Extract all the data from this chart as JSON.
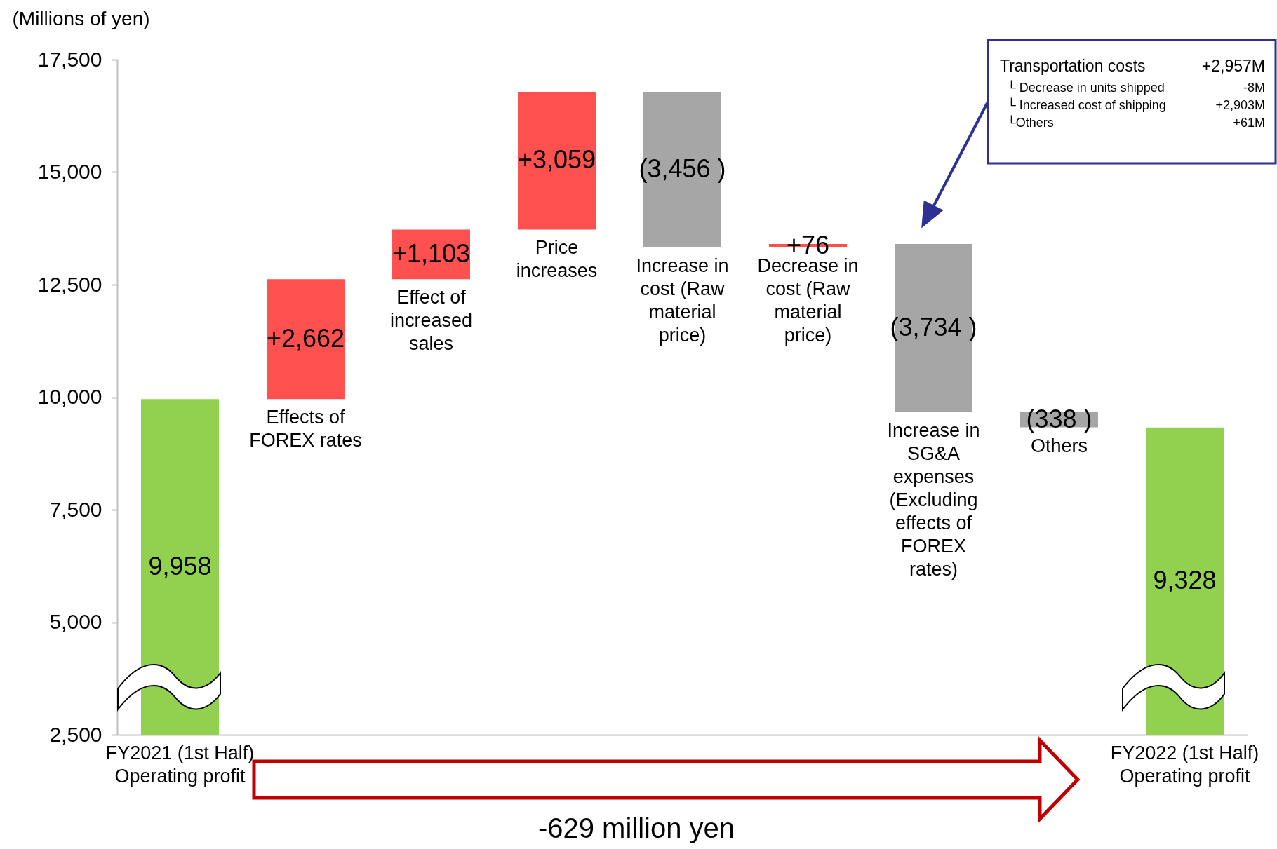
{
  "chart_data": {
    "type": "bar",
    "ylabel": "(Millions of yen)",
    "categories": [
      "FY2021 (1st Half) Operating profit",
      "Effects of FOREX rates",
      "Effect of increased sales",
      "Price increases",
      "Increase in cost (Raw material price)",
      "Decrease in cost (Raw material price)",
      "Increase in SG&A expenses (Excluding effects of FOREX rates)",
      "Others",
      "FY2022 (1st Half) Operating profit"
    ],
    "values": [
      9958,
      2662,
      1103,
      3059,
      -3456,
      76,
      -3734,
      -338,
      9328
    ],
    "base": [
      null,
      9958,
      12620,
      13723,
      16782,
      13326,
      13402,
      9668,
      null
    ],
    "colors": [
      "#92d050",
      "#ff5050",
      "#ff5050",
      "#ff5050",
      "#a6a6a6",
      "#ff5050",
      "#a6a6a6",
      "#a6a6a6",
      "#92d050"
    ],
    "value_labels": [
      "9,958",
      "+2,662",
      "+1,103",
      "+3,059",
      "(3,456 )",
      "+76",
      "(3,734 )",
      "(338 )",
      "9,328"
    ],
    "ylim": [
      2500,
      17500
    ],
    "yticks": [
      {
        "value": 2500,
        "label": "2,500"
      },
      {
        "value": 5000,
        "label": "5,000"
      },
      {
        "value": 7500,
        "label": "7,500"
      },
      {
        "value": 10000,
        "label": "10,000"
      },
      {
        "value": 12500,
        "label": "12,500"
      },
      {
        "value": 15000,
        "label": "15,000"
      },
      {
        "value": 17500,
        "label": "17,500"
      }
    ],
    "grid": false,
    "annotations": [
      "-629 million yen",
      "Transportation costs",
      "+2,957M",
      "└ Decrease in units shipped",
      "-8M",
      "└ Increased cost of shipping",
      "+2,903M",
      "└Others",
      "+61M"
    ]
  }
}
